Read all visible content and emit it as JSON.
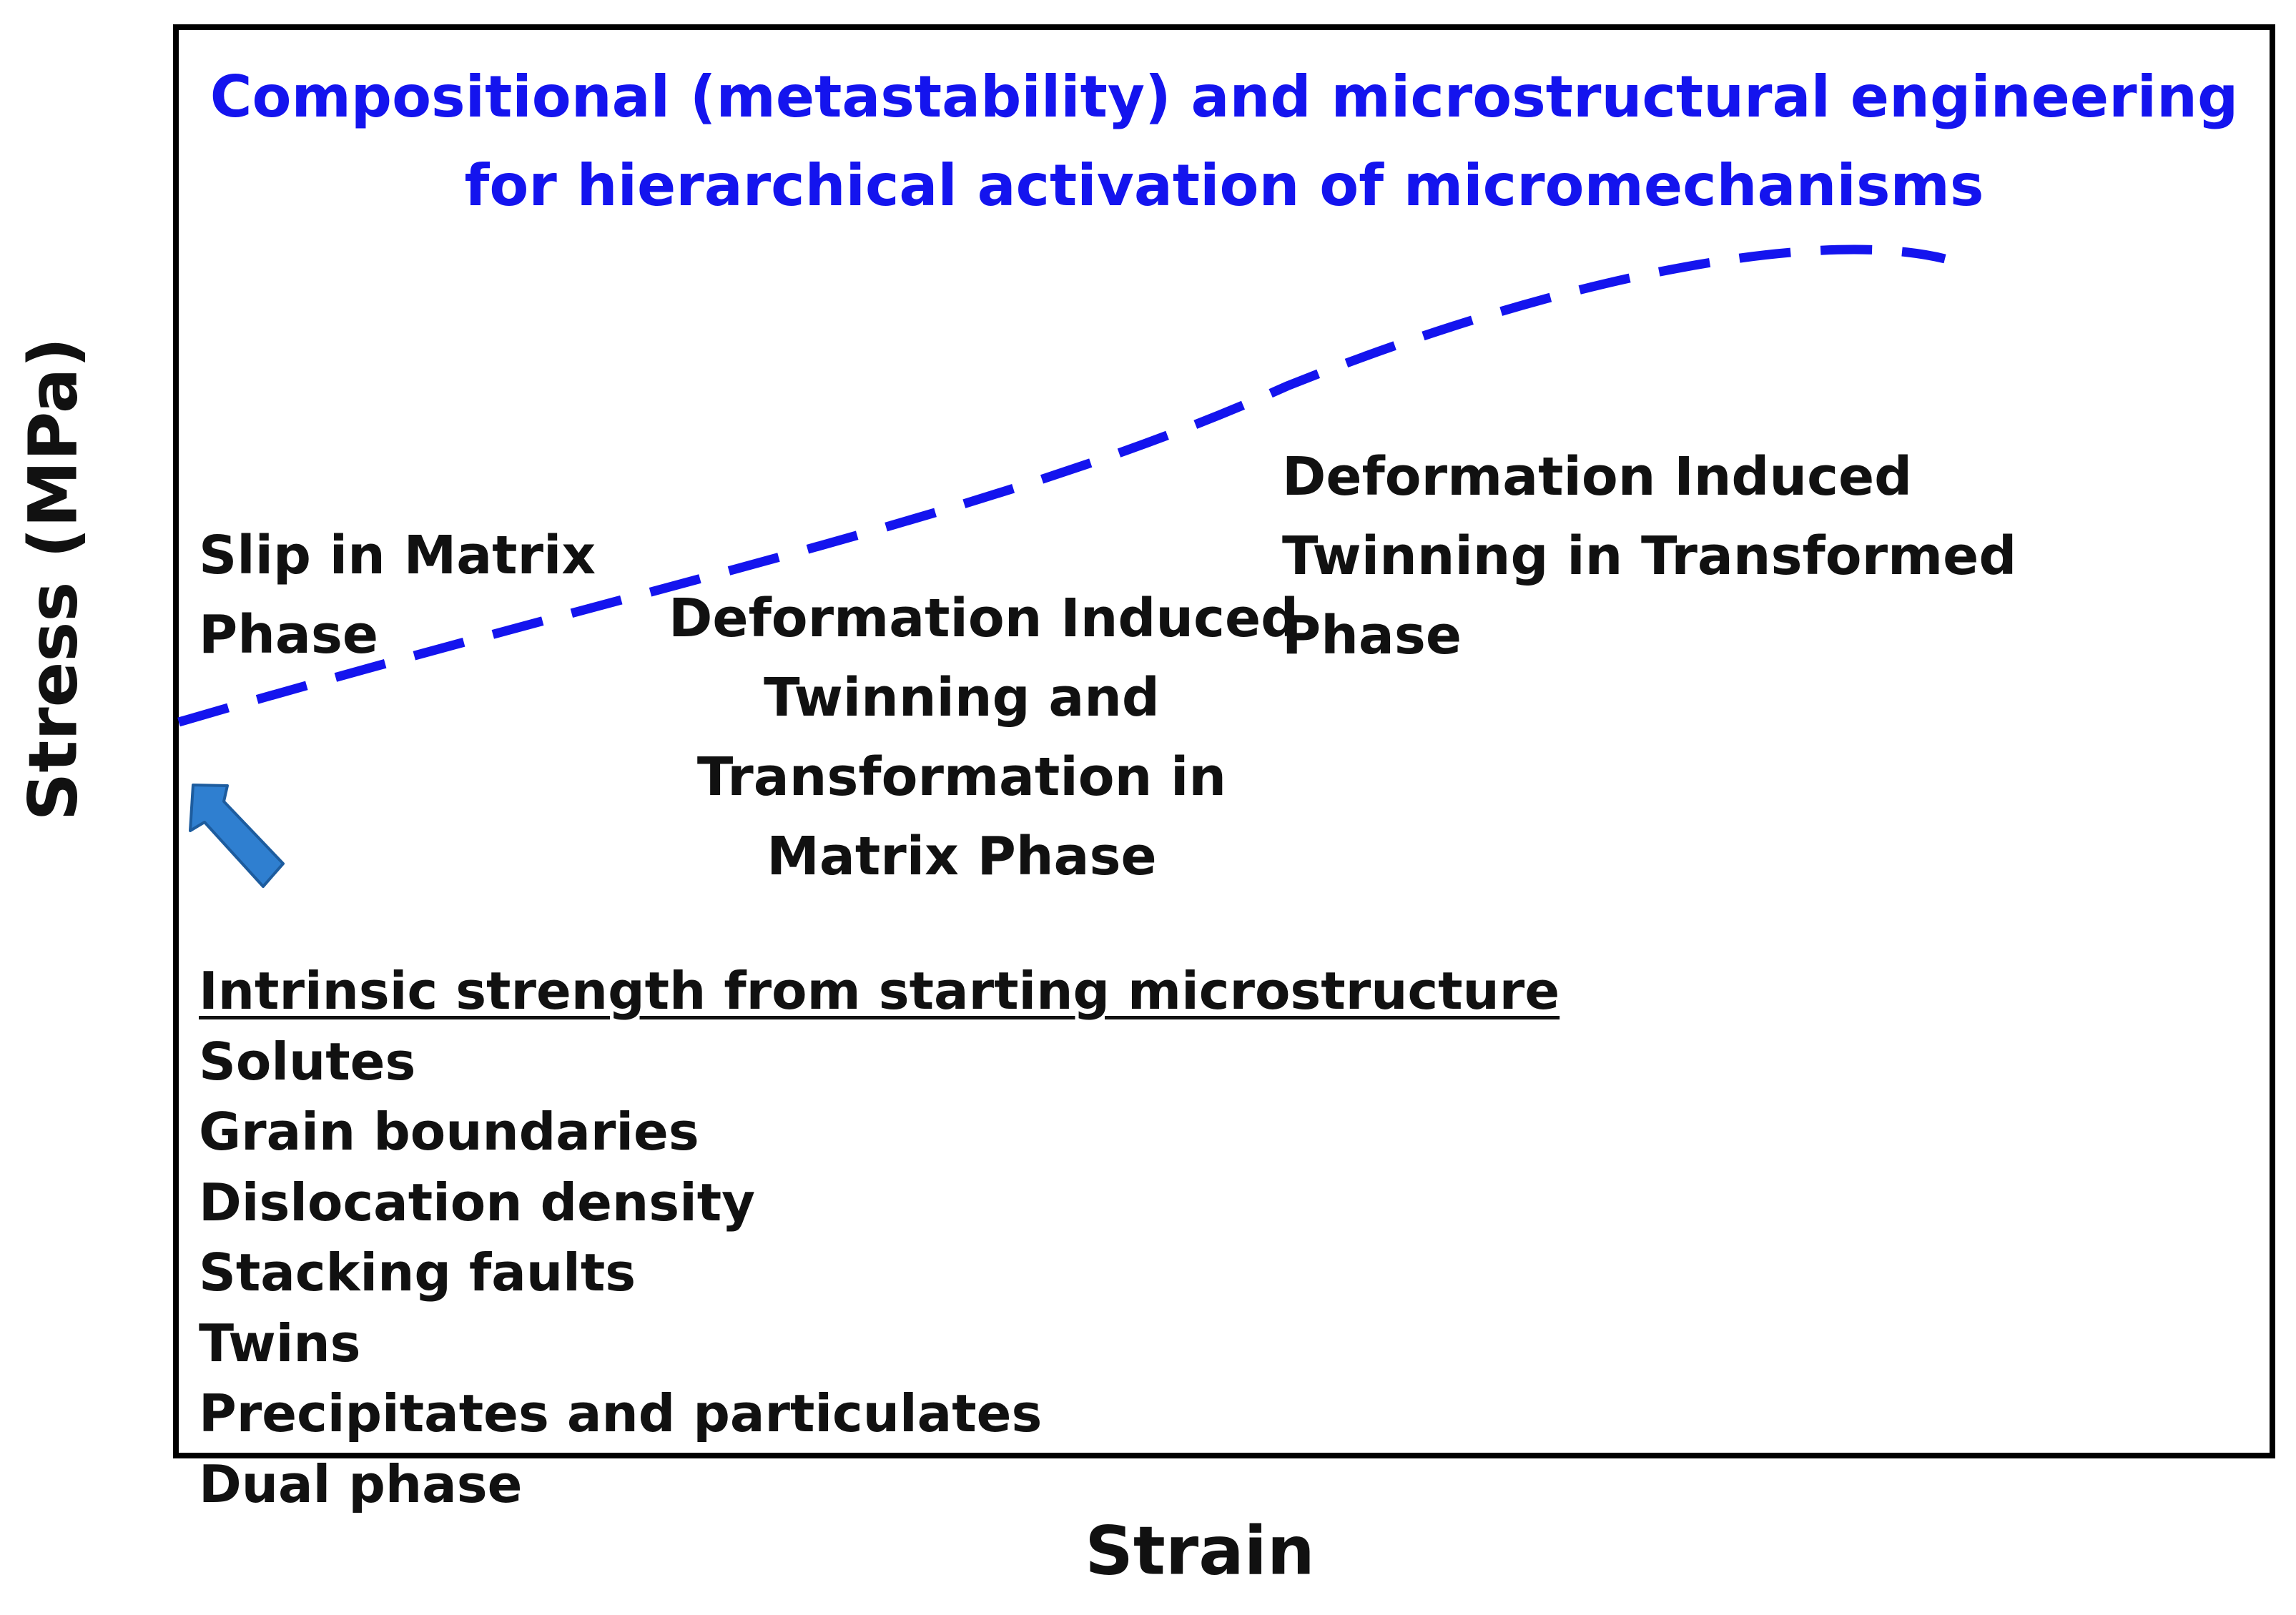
{
  "title": {
    "line1": "Compositional (metastability) and microstructural engineering",
    "line2": "for hierarchical activation of micromechanisms"
  },
  "axes": {
    "y_label": "Stress (MPa)",
    "x_label": "Strain"
  },
  "curve_color": "#1414ee",
  "arrow_color": "#2f7fd0",
  "annotations": {
    "slip": [
      "Slip in Matrix",
      "Phase"
    ],
    "matrix_twinning": [
      "Deformation Induced",
      "Twinning and",
      "Transformation in",
      "Matrix Phase"
    ],
    "transformed_twinning": [
      "Deformation Induced",
      "Twinning in Transformed",
      "Phase"
    ]
  },
  "intrinsic": {
    "heading": "Intrinsic strength from starting microstructure",
    "items": [
      "Solutes",
      "Grain boundaries",
      "Dislocation density",
      "Stacking faults",
      "Twins",
      "Precipitates and particulates",
      "Dual phase"
    ]
  }
}
